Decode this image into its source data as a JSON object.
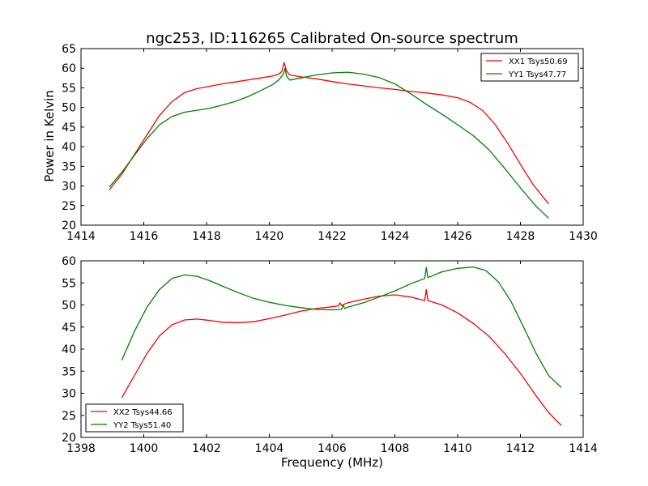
{
  "figure": {
    "title": "ngc253, ID:116265 Calibrated On-source spectrum",
    "xlabel": "Frequency (MHz)",
    "ylabel": "Power in Kelvin"
  },
  "colors": {
    "red": "#ff0000",
    "green": "#008000",
    "axes": "#000000",
    "background": "#ffffff"
  },
  "chart_data": [
    {
      "type": "line",
      "xlim": [
        1414,
        1430
      ],
      "ylim": [
        20,
        65
      ],
      "xticks": [
        1414,
        1416,
        1418,
        1420,
        1422,
        1424,
        1426,
        1428,
        1430
      ],
      "yticks": [
        20,
        25,
        30,
        35,
        40,
        45,
        50,
        55,
        60,
        65
      ],
      "legend_position": "top-right",
      "grid": false,
      "series": [
        {
          "name": "XX1 Tsys50.69",
          "color": "#ff0000",
          "x": [
            1414.9,
            1415.3,
            1415.7,
            1416.1,
            1416.5,
            1416.9,
            1417.3,
            1417.7,
            1418.1,
            1418.5,
            1418.9,
            1419.3,
            1419.7,
            1420.1,
            1420.3,
            1420.4,
            1420.47,
            1420.55,
            1420.65,
            1421.0,
            1421.5,
            1422.0,
            1422.5,
            1423.0,
            1423.5,
            1424.0,
            1424.5,
            1425.0,
            1425.5,
            1426.0,
            1426.4,
            1426.8,
            1427.2,
            1427.6,
            1428.0,
            1428.4,
            1428.9
          ],
          "y": [
            29,
            33,
            38,
            43,
            48,
            51.5,
            53.8,
            54.8,
            55.4,
            56,
            56.5,
            57,
            57.5,
            58,
            58.5,
            59.2,
            61.5,
            59.3,
            58.3,
            57.8,
            57.3,
            56.6,
            56,
            55.5,
            55,
            54.6,
            54.1,
            53.7,
            53.2,
            52.5,
            51.3,
            49.2,
            45.6,
            40.8,
            35.5,
            30.4,
            25.4
          ]
        },
        {
          "name": "YY1 Tsys47.77",
          "color": "#008000",
          "x": [
            1414.9,
            1415.3,
            1415.7,
            1416.1,
            1416.5,
            1416.9,
            1417.3,
            1417.7,
            1418.1,
            1418.5,
            1418.9,
            1419.3,
            1419.7,
            1420.1,
            1420.3,
            1420.45,
            1420.5,
            1420.55,
            1420.65,
            1421.0,
            1421.5,
            1422.0,
            1422.5,
            1423.0,
            1423.5,
            1424.0,
            1424.5,
            1425.0,
            1425.5,
            1426.0,
            1426.5,
            1427.0,
            1427.5,
            1428.0,
            1428.5,
            1428.9
          ],
          "y": [
            29.7,
            33.5,
            37.8,
            42,
            45.6,
            47.7,
            48.8,
            49.3,
            49.8,
            50.6,
            51.5,
            52.7,
            54.2,
            55.8,
            57,
            58.5,
            60,
            58,
            57,
            57.5,
            58.3,
            58.8,
            59,
            58.5,
            57.6,
            56,
            53.5,
            50.8,
            48.3,
            45.6,
            42.8,
            39.2,
            34.5,
            29.5,
            24.8,
            21.8
          ]
        }
      ]
    },
    {
      "type": "line",
      "xlim": [
        1398,
        1414
      ],
      "ylim": [
        20,
        60
      ],
      "xticks": [
        1398,
        1400,
        1402,
        1404,
        1406,
        1408,
        1410,
        1412,
        1414
      ],
      "yticks": [
        20,
        25,
        30,
        35,
        40,
        45,
        50,
        55,
        60
      ],
      "xlabel": "Frequency (MHz)",
      "legend_position": "bottom-left",
      "grid": false,
      "series": [
        {
          "name": "XX2 Tsys44.66",
          "color": "#ff0000",
          "x": [
            1399.3,
            1399.7,
            1400.1,
            1400.5,
            1400.9,
            1401.3,
            1401.7,
            1402.1,
            1402.5,
            1403.0,
            1403.5,
            1404.0,
            1404.5,
            1405.0,
            1405.5,
            1406.0,
            1406.2,
            1406.25,
            1406.3,
            1406.5,
            1407.0,
            1407.5,
            1408.0,
            1408.5,
            1408.95,
            1409.0,
            1409.05,
            1409.5,
            1410.0,
            1410.5,
            1411.0,
            1411.5,
            1412.0,
            1412.5,
            1412.9,
            1413.3
          ],
          "y": [
            29,
            34,
            39,
            43,
            45.5,
            46.6,
            46.8,
            46.5,
            46.1,
            46,
            46.2,
            46.9,
            47.7,
            48.6,
            49.2,
            49.6,
            49.8,
            50.5,
            49.9,
            50.5,
            51.3,
            52,
            52.3,
            51.8,
            51,
            53.5,
            51,
            50,
            48.2,
            45.8,
            42.9,
            39,
            34.5,
            29.4,
            25.6,
            22.7
          ]
        },
        {
          "name": "YY2 Tsys51.40",
          "color": "#008000",
          "x": [
            1399.3,
            1399.7,
            1400.1,
            1400.5,
            1400.9,
            1401.3,
            1401.7,
            1402.1,
            1402.5,
            1403.0,
            1403.5,
            1404.0,
            1404.5,
            1405.0,
            1405.5,
            1406.0,
            1406.3,
            1406.35,
            1406.4,
            1406.5,
            1407.0,
            1407.5,
            1408.0,
            1408.5,
            1408.95,
            1409.0,
            1409.05,
            1409.5,
            1410.0,
            1410.5,
            1410.9,
            1411.3,
            1411.7,
            1412.1,
            1412.5,
            1412.9,
            1413.3
          ],
          "y": [
            37.5,
            44,
            49.5,
            53.5,
            56,
            56.8,
            56.5,
            55.5,
            54.3,
            52.8,
            51.5,
            50.6,
            49.9,
            49.4,
            49,
            48.9,
            49,
            50,
            49.2,
            49.5,
            50.5,
            51.8,
            53.2,
            54.8,
            56,
            58.5,
            56.2,
            57.5,
            58.3,
            58.6,
            57.8,
            55.2,
            50.8,
            45,
            39,
            34,
            31.3
          ]
        }
      ]
    }
  ]
}
